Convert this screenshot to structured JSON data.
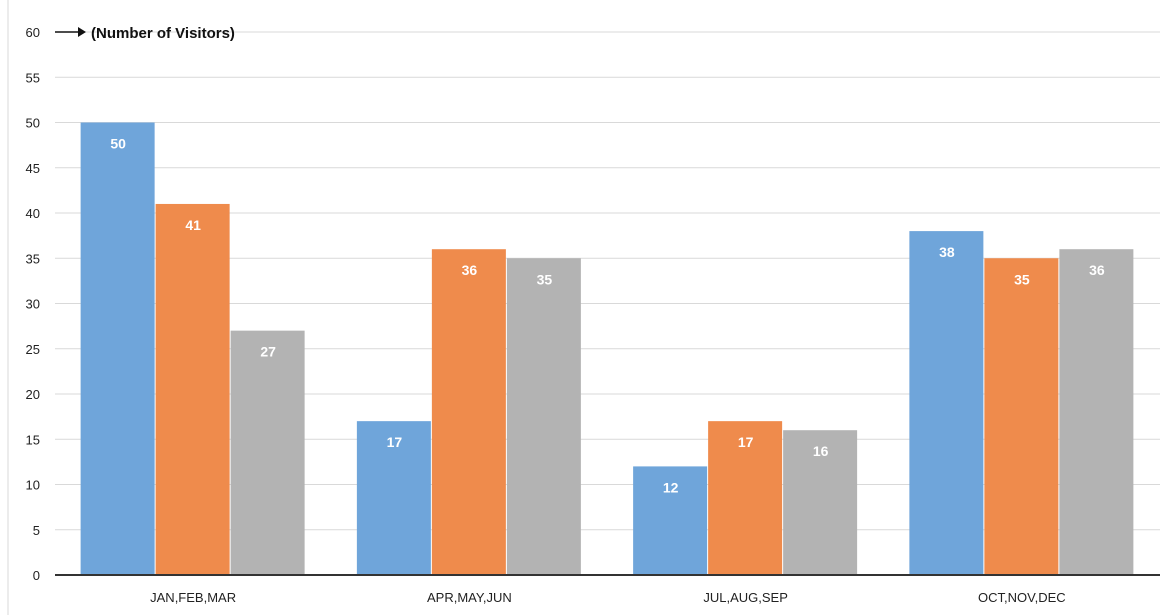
{
  "chart_data": {
    "type": "bar",
    "title": "",
    "ylabel": "(Number of Visitors)",
    "xlabel": "",
    "ylim": [
      0,
      60
    ],
    "ytick_step": 5,
    "yticks": [
      "0",
      "5",
      "10",
      "15",
      "20",
      "25",
      "30",
      "35",
      "40",
      "45",
      "50",
      "55",
      "60"
    ],
    "grid": true,
    "categories": [
      "JAN,FEB,MAR",
      "APR,MAY,JUN",
      "JUL,AUG,SEP",
      "OCT,NOV,DEC"
    ],
    "series": [
      {
        "color": "#6fa5da",
        "values": [
          50,
          17,
          12,
          38
        ]
      },
      {
        "color": "#ef8b4c",
        "values": [
          41,
          36,
          17,
          35
        ]
      },
      {
        "color": "#b3b3b3",
        "values": [
          27,
          35,
          16,
          36
        ]
      }
    ],
    "data_labels": true
  }
}
